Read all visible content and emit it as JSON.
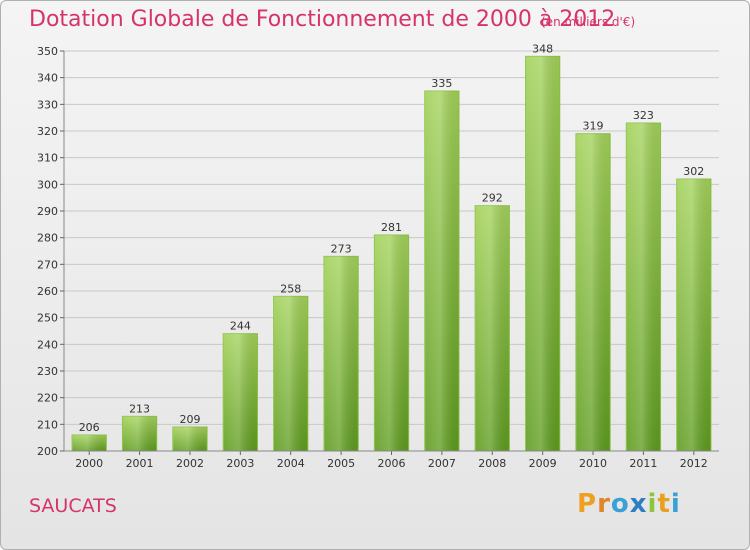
{
  "header": {
    "title": "Dotation Globale de Fonctionnement de 2000 à 2012",
    "unit": "(en milliers d'€)"
  },
  "footer": {
    "commune": "SAUCATS",
    "logo_letters": [
      "P",
      "r",
      "o",
      "x",
      "i",
      "t",
      "i"
    ],
    "logo_colors": [
      "#f0a020",
      "#e0862a",
      "#3aa0d8",
      "#2c7fc4",
      "#8cc63f",
      "#e8a020",
      "#3aa0d8"
    ]
  },
  "colors": {
    "accent": "#d6336c",
    "bar_top": "#a3d25a",
    "bar_bottom": "#5e9c1e",
    "grid": "#c8c8c8"
  },
  "chart_data": {
    "type": "bar",
    "title": "Dotation Globale de Fonctionnement de 2000 à 2012",
    "subtitle": "(en milliers d'€)",
    "categories": [
      "2000",
      "2001",
      "2002",
      "2003",
      "2004",
      "2005",
      "2006",
      "2007",
      "2008",
      "2009",
      "2010",
      "2011",
      "2012"
    ],
    "values": [
      206,
      213,
      209,
      244,
      258,
      273,
      281,
      335,
      292,
      348,
      319,
      323,
      302
    ],
    "ylim": [
      200,
      350
    ],
    "yticks": [
      200,
      210,
      220,
      230,
      240,
      250,
      260,
      270,
      280,
      290,
      300,
      310,
      320,
      330,
      340,
      350
    ],
    "grid": true,
    "xlabel": "",
    "ylabel": ""
  }
}
